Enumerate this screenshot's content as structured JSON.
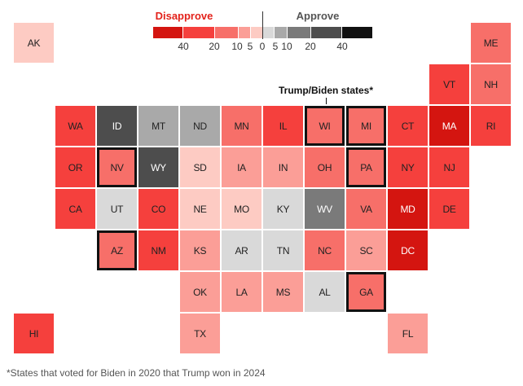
{
  "chart_data": {
    "type": "heatmap",
    "title": "",
    "legend": {
      "disapprove_label": "Disapprove",
      "approve_label": "Approve",
      "ticks": [
        "40",
        "20",
        "10",
        "5",
        "0",
        "5",
        "10",
        "20",
        "40"
      ],
      "bins": [
        {
          "id": "d40",
          "range": "Disapprove 40+",
          "color": "#d41510"
        },
        {
          "id": "d20",
          "range": "Disapprove 20-40",
          "color": "#f5403d"
        },
        {
          "id": "d10",
          "range": "Disapprove 10-20",
          "color": "#f76f69"
        },
        {
          "id": "d5",
          "range": "Disapprove 5-10",
          "color": "#fb9e97"
        },
        {
          "id": "d0",
          "range": "Disapprove 0-5",
          "color": "#fdcbc3"
        },
        {
          "id": "a0",
          "range": "Approve 0-5",
          "color": "#d9d9d9"
        },
        {
          "id": "a5",
          "range": "Approve 5-10",
          "color": "#a9a9a9"
        },
        {
          "id": "a10",
          "range": "Approve 10-20",
          "color": "#7a7a7a"
        },
        {
          "id": "a20",
          "range": "Approve 20-40",
          "color": "#4d4d4d"
        },
        {
          "id": "a40",
          "range": "Approve 40+",
          "color": "#111111"
        }
      ]
    },
    "annotation": "Trump/Biden states*",
    "footnote": "*States that voted for Biden in 2020 that Trump won in 2024",
    "states": [
      {
        "code": "AK",
        "bin": "d0"
      },
      {
        "code": "ME",
        "bin": "d10"
      },
      {
        "code": "VT",
        "bin": "d20"
      },
      {
        "code": "NH",
        "bin": "d10"
      },
      {
        "code": "WA",
        "bin": "d20"
      },
      {
        "code": "ID",
        "bin": "a20"
      },
      {
        "code": "MT",
        "bin": "a5"
      },
      {
        "code": "ND",
        "bin": "a5"
      },
      {
        "code": "MN",
        "bin": "d10"
      },
      {
        "code": "IL",
        "bin": "d20"
      },
      {
        "code": "WI",
        "bin": "d10",
        "flagged": true
      },
      {
        "code": "MI",
        "bin": "d10",
        "flagged": true
      },
      {
        "code": "CT",
        "bin": "d20"
      },
      {
        "code": "MA",
        "bin": "d40"
      },
      {
        "code": "RI",
        "bin": "d20"
      },
      {
        "code": "OR",
        "bin": "d20"
      },
      {
        "code": "NV",
        "bin": "d10",
        "flagged": true
      },
      {
        "code": "WY",
        "bin": "a20"
      },
      {
        "code": "SD",
        "bin": "d0"
      },
      {
        "code": "IA",
        "bin": "d5"
      },
      {
        "code": "IN",
        "bin": "d5"
      },
      {
        "code": "OH",
        "bin": "d10"
      },
      {
        "code": "PA",
        "bin": "d10",
        "flagged": true
      },
      {
        "code": "NY",
        "bin": "d20"
      },
      {
        "code": "NJ",
        "bin": "d20"
      },
      {
        "code": "CA",
        "bin": "d20"
      },
      {
        "code": "UT",
        "bin": "a0"
      },
      {
        "code": "CO",
        "bin": "d20"
      },
      {
        "code": "NE",
        "bin": "d0"
      },
      {
        "code": "MO",
        "bin": "d0"
      },
      {
        "code": "KY",
        "bin": "a0"
      },
      {
        "code": "WV",
        "bin": "a10"
      },
      {
        "code": "VA",
        "bin": "d10"
      },
      {
        "code": "MD",
        "bin": "d40"
      },
      {
        "code": "DE",
        "bin": "d20"
      },
      {
        "code": "AZ",
        "bin": "d10",
        "flagged": true
      },
      {
        "code": "NM",
        "bin": "d20"
      },
      {
        "code": "KS",
        "bin": "d5"
      },
      {
        "code": "AR",
        "bin": "a0"
      },
      {
        "code": "TN",
        "bin": "a0"
      },
      {
        "code": "NC",
        "bin": "d10"
      },
      {
        "code": "SC",
        "bin": "d5"
      },
      {
        "code": "DC",
        "bin": "d40"
      },
      {
        "code": "OK",
        "bin": "d5"
      },
      {
        "code": "LA",
        "bin": "d5"
      },
      {
        "code": "MS",
        "bin": "d5"
      },
      {
        "code": "AL",
        "bin": "a0"
      },
      {
        "code": "GA",
        "bin": "d10",
        "flagged": true
      },
      {
        "code": "HI",
        "bin": "d20"
      },
      {
        "code": "TX",
        "bin": "d5"
      },
      {
        "code": "FL",
        "bin": "d5"
      }
    ]
  }
}
